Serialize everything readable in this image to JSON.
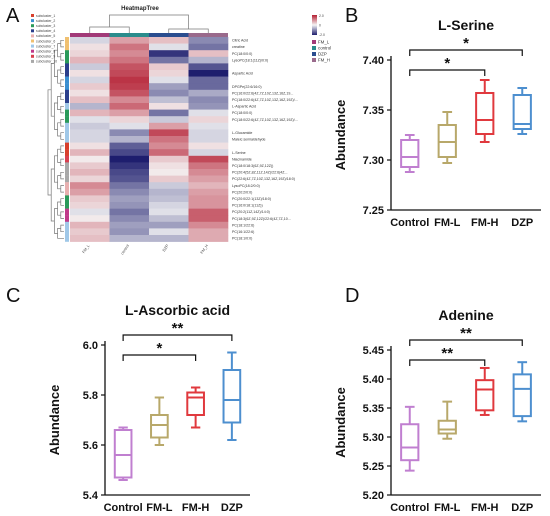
{
  "panel_letters": [
    "A",
    "B",
    "C",
    "D"
  ],
  "heatmap": {
    "title": "HeatmapTree",
    "columns": [
      "FM_L",
      "control",
      "DZP",
      "FM_H"
    ],
    "column_group_colors": [
      "#a23a78",
      "#2a8c8c",
      "#2a4d8f",
      "#9a6a8c"
    ],
    "legend_groups": [
      "FM_L",
      "control",
      "DZP",
      "FM_H"
    ],
    "legend_colors": [
      "#a23a78",
      "#2a8c8c",
      "#2a4d8f",
      "#9a6a8c"
    ],
    "scale_ticks": [
      "2.0",
      "0",
      "-2.0"
    ],
    "subclusters": [
      "subcluster_1",
      "subcluster_2",
      "subcluster_3",
      "subcluster_4",
      "subcluster_5",
      "subcluster_6",
      "subcluster_7",
      "subcluster_8",
      "subcluster_9",
      "subcluster_10"
    ],
    "subcluster_colors": [
      "#d8402d",
      "#3a8fd0",
      "#2a9a5a",
      "#2b3f8c",
      "#e8b0b0",
      "#f0c070",
      "#a0c8e8",
      "#c03a8a",
      "#d84050",
      "#a8a8a8"
    ],
    "row_labels": [
      "Citric Acid",
      "creatine",
      "PC(18:0/0:0)",
      "LysoPC(18:1(11Z)/0:0)",
      "",
      "Aspartic Acid",
      "",
      "DPGPe(22:6/16:0)",
      "PC(16:0/22:6(4Z,7Z,10Z,13Z,16Z,19...",
      "PC(18:0/22:6(4Z,7Z,10Z,13Z,16Z,19Z)/...",
      "L-Aspartic Acid",
      "PC(18:0/0:0)",
      "PC(18:0/22:6(4Z,7Z,10Z,13Z,16Z,19Z)/...",
      "",
      "L-Glucamide",
      "Maleic semialdehyde",
      "",
      "L-Serine",
      "Niacinamide",
      "PC(18:0/18:3(6Z,9Z,12Z))",
      "PC(20:4(5Z,8Z,11Z,14Z)/22:6(4Z...",
      "PC(22:6(4Z,7Z,10Z,13Z,16Z,19Z)/18:0)",
      "LysoPC(18:2/0:0)",
      "PC(20:2/0:0)",
      "PC(20:0/22:1(13Z)/18:0)",
      "PC(16:0/18:1(11Z))",
      "PC(20:2(11Z,14Z)/14:0)",
      "PC(18:3(6Z,9Z,12Z)/22:6(4Z,7Z,10...",
      "PC(18:1/22:6)",
      "PC(16:1/22:6)",
      "PC(18:1/0:0)"
    ],
    "row_subcluster_colors": [
      "#f0c070",
      "#f0c070",
      "#2a9a5a",
      "#2a9a5a",
      "#2b3f8c",
      "#2b3f8c",
      "#3a8fd0",
      "#3a8fd0",
      "#2b3f8c",
      "#2b3f8c",
      "#a0c8e8",
      "#2a9a5a",
      "#2a9a5a",
      "#a0c8e8",
      "#a0c8e8",
      "#a0c8e8",
      "#d8402d",
      "#d8402d",
      "#d84050",
      "#a8a8a8",
      "#a8a8a8",
      "#a8a8a8",
      "#e8b0b0",
      "#e8b0b0",
      "#2a9a5a",
      "#2a9a5a",
      "#c03a8a",
      "#c03a8a",
      "#a0c8e8",
      "#a0c8e8",
      "#a0c8e8"
    ],
    "zscores": [
      [
        -0.3,
        0.8,
        0.5,
        -1.0
      ],
      [
        0.2,
        1.2,
        -0.2,
        -1.2
      ],
      [
        0.3,
        1.0,
        -1.8,
        0.5
      ],
      [
        0.6,
        1.2,
        -1.2,
        -0.6
      ],
      [
        -0.4,
        1.5,
        0.4,
        -1.5
      ],
      [
        0.2,
        1.6,
        0.3,
        -2.0
      ],
      [
        -0.3,
        1.8,
        -0.2,
        -1.3
      ],
      [
        0.4,
        1.7,
        -0.8,
        -1.3
      ],
      [
        0.2,
        1.5,
        -1.0,
        -0.7
      ],
      [
        0.5,
        1.0,
        -0.5,
        -1.0
      ],
      [
        -0.6,
        1.3,
        0.2,
        -0.9
      ],
      [
        0.6,
        0.8,
        -1.2,
        -0.2
      ],
      [
        -0.2,
        0.3,
        -0.4,
        0.3
      ],
      [
        -0.4,
        -0.2,
        0.8,
        -0.2
      ],
      [
        -0.3,
        -1.0,
        1.6,
        -0.3
      ],
      [
        -0.3,
        -0.6,
        1.2,
        -0.3
      ],
      [
        0.2,
        -1.4,
        1.0,
        0.2
      ],
      [
        0.6,
        -1.6,
        1.3,
        -0.3
      ],
      [
        0.1,
        -2.1,
        0.4,
        1.6
      ],
      [
        0.4,
        -1.8,
        0.2,
        1.2
      ],
      [
        0.6,
        -1.6,
        0.1,
        1.0
      ],
      [
        0.3,
        -1.5,
        0.4,
        0.8
      ],
      [
        1.0,
        -1.2,
        -0.4,
        0.6
      ],
      [
        0.8,
        -1.0,
        -0.6,
        0.8
      ],
      [
        0.4,
        -0.8,
        -0.5,
        0.9
      ],
      [
        0.3,
        -0.9,
        -0.3,
        0.9
      ],
      [
        -0.2,
        -1.2,
        -0.2,
        1.4
      ],
      [
        0.1,
        -1.0,
        -0.5,
        1.4
      ],
      [
        0.6,
        -0.8,
        -0.8,
        1.0
      ],
      [
        0.4,
        -0.9,
        -0.2,
        0.7
      ],
      [
        0.5,
        -0.6,
        -0.6,
        0.7
      ]
    ]
  },
  "chart_data": [
    {
      "type": "box",
      "panel": "B",
      "title": "L-Serine",
      "ylabel": "Abundance",
      "categories": [
        "Control",
        "FM-L",
        "FM-H",
        "DZP"
      ],
      "colors": [
        "#c07fd0",
        "#b8a86a",
        "#e0393e",
        "#4d8fcf"
      ],
      "ylim": [
        7.25,
        7.4
      ],
      "yticks": [
        "7.25",
        "7.30",
        "7.35",
        "7.40"
      ],
      "boxes": [
        {
          "min": 7.288,
          "q1": 7.293,
          "median": 7.303,
          "q3": 7.32,
          "max": 7.325
        },
        {
          "min": 7.297,
          "q1": 7.303,
          "median": 7.318,
          "q3": 7.335,
          "max": 7.348
        },
        {
          "min": 7.318,
          "q1": 7.326,
          "median": 7.34,
          "q3": 7.367,
          "max": 7.38
        },
        {
          "min": 7.326,
          "q1": 7.331,
          "median": 7.336,
          "q3": 7.365,
          "max": 7.372
        }
      ],
      "significance": [
        {
          "from": "Control",
          "to": "FM-H",
          "label": "*"
        },
        {
          "from": "Control",
          "to": "DZP",
          "label": "*"
        }
      ]
    },
    {
      "type": "box",
      "panel": "C",
      "title": "L-Ascorbic acid",
      "ylabel": "Abundance",
      "categories": [
        "Control",
        "FM-L",
        "FM-H",
        "DZP"
      ],
      "colors": [
        "#c07fd0",
        "#b8a86a",
        "#e0393e",
        "#4d8fcf"
      ],
      "ylim": [
        5.4,
        6.0
      ],
      "yticks": [
        "5.4",
        "5.6",
        "5.8",
        "6.0"
      ],
      "boxes": [
        {
          "min": 5.46,
          "q1": 5.47,
          "median": 5.56,
          "q3": 5.66,
          "max": 5.67
        },
        {
          "min": 5.6,
          "q1": 5.63,
          "median": 5.68,
          "q3": 5.72,
          "max": 5.79
        },
        {
          "min": 5.67,
          "q1": 5.72,
          "median": 5.79,
          "q3": 5.81,
          "max": 5.83
        },
        {
          "min": 5.62,
          "q1": 5.69,
          "median": 5.78,
          "q3": 5.9,
          "max": 5.97
        }
      ],
      "significance": [
        {
          "from": "Control",
          "to": "FM-H",
          "label": "*"
        },
        {
          "from": "Control",
          "to": "DZP",
          "label": "**"
        }
      ]
    },
    {
      "type": "box",
      "panel": "D",
      "title": "Adenine",
      "ylabel": "Abundance",
      "categories": [
        "Control",
        "FM-L",
        "FM-H",
        "DZP"
      ],
      "colors": [
        "#c07fd0",
        "#b8a86a",
        "#e0393e",
        "#4d8fcf"
      ],
      "ylim": [
        5.2,
        5.45
      ],
      "yticks": [
        "5.20",
        "5.25",
        "5.30",
        "5.35",
        "5.40",
        "5.45"
      ],
      "boxes": [
        {
          "min": 5.242,
          "q1": 5.26,
          "median": 5.282,
          "q3": 5.322,
          "max": 5.352
        },
        {
          "min": 5.297,
          "q1": 5.306,
          "median": 5.313,
          "q3": 5.328,
          "max": 5.361
        },
        {
          "min": 5.338,
          "q1": 5.346,
          "median": 5.382,
          "q3": 5.398,
          "max": 5.419
        },
        {
          "min": 5.327,
          "q1": 5.336,
          "median": 5.383,
          "q3": 5.408,
          "max": 5.429
        }
      ],
      "significance": [
        {
          "from": "Control",
          "to": "FM-H",
          "label": "**"
        },
        {
          "from": "Control",
          "to": "DZP",
          "label": "**"
        }
      ]
    }
  ]
}
